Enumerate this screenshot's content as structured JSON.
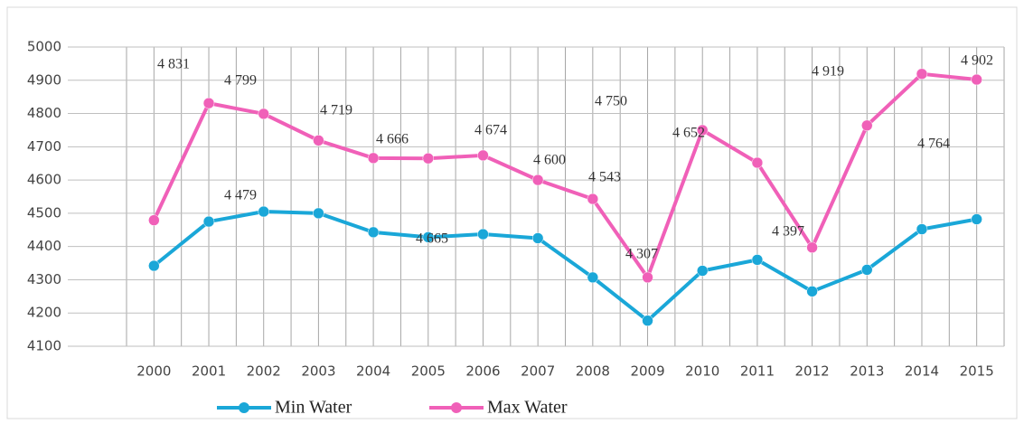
{
  "chart_data": {
    "type": "line",
    "categories": [
      "2000",
      "2001",
      "2002",
      "2003",
      "2004",
      "2005",
      "2006",
      "2007",
      "2008",
      "2009",
      "2010",
      "2011",
      "2012",
      "2013",
      "2014",
      "2015"
    ],
    "series": [
      {
        "name": "Min Water",
        "color": "#1aa7d8",
        "values": [
          4342,
          4475,
          4505,
          4500,
          4443,
          4428,
          4437,
          4425,
          4307,
          4177,
          4327,
          4360,
          4265,
          4330,
          4452,
          4482
        ]
      },
      {
        "name": "Max Water",
        "color": "#f060b8",
        "values": [
          4479,
          4831,
          4799,
          4719,
          4666,
          4665,
          4674,
          4600,
          4543,
          4307,
          4750,
          4652,
          4397,
          4764,
          4919,
          4902
        ],
        "value_labels": [
          "4 479",
          "4 831",
          "4 799",
          "4 719",
          "4 666",
          "4 665",
          "4 674",
          "4 600",
          "4 543",
          "4 307",
          "4 750",
          "4 652",
          "4 397",
          "4 764",
          "4 919",
          "4 902"
        ]
      }
    ],
    "ylim": [
      4100,
      5000
    ],
    "yticks": [
      4100,
      4200,
      4300,
      4400,
      4500,
      4600,
      4700,
      4800,
      4900,
      5000
    ],
    "grid": true,
    "legend": "bottom"
  }
}
